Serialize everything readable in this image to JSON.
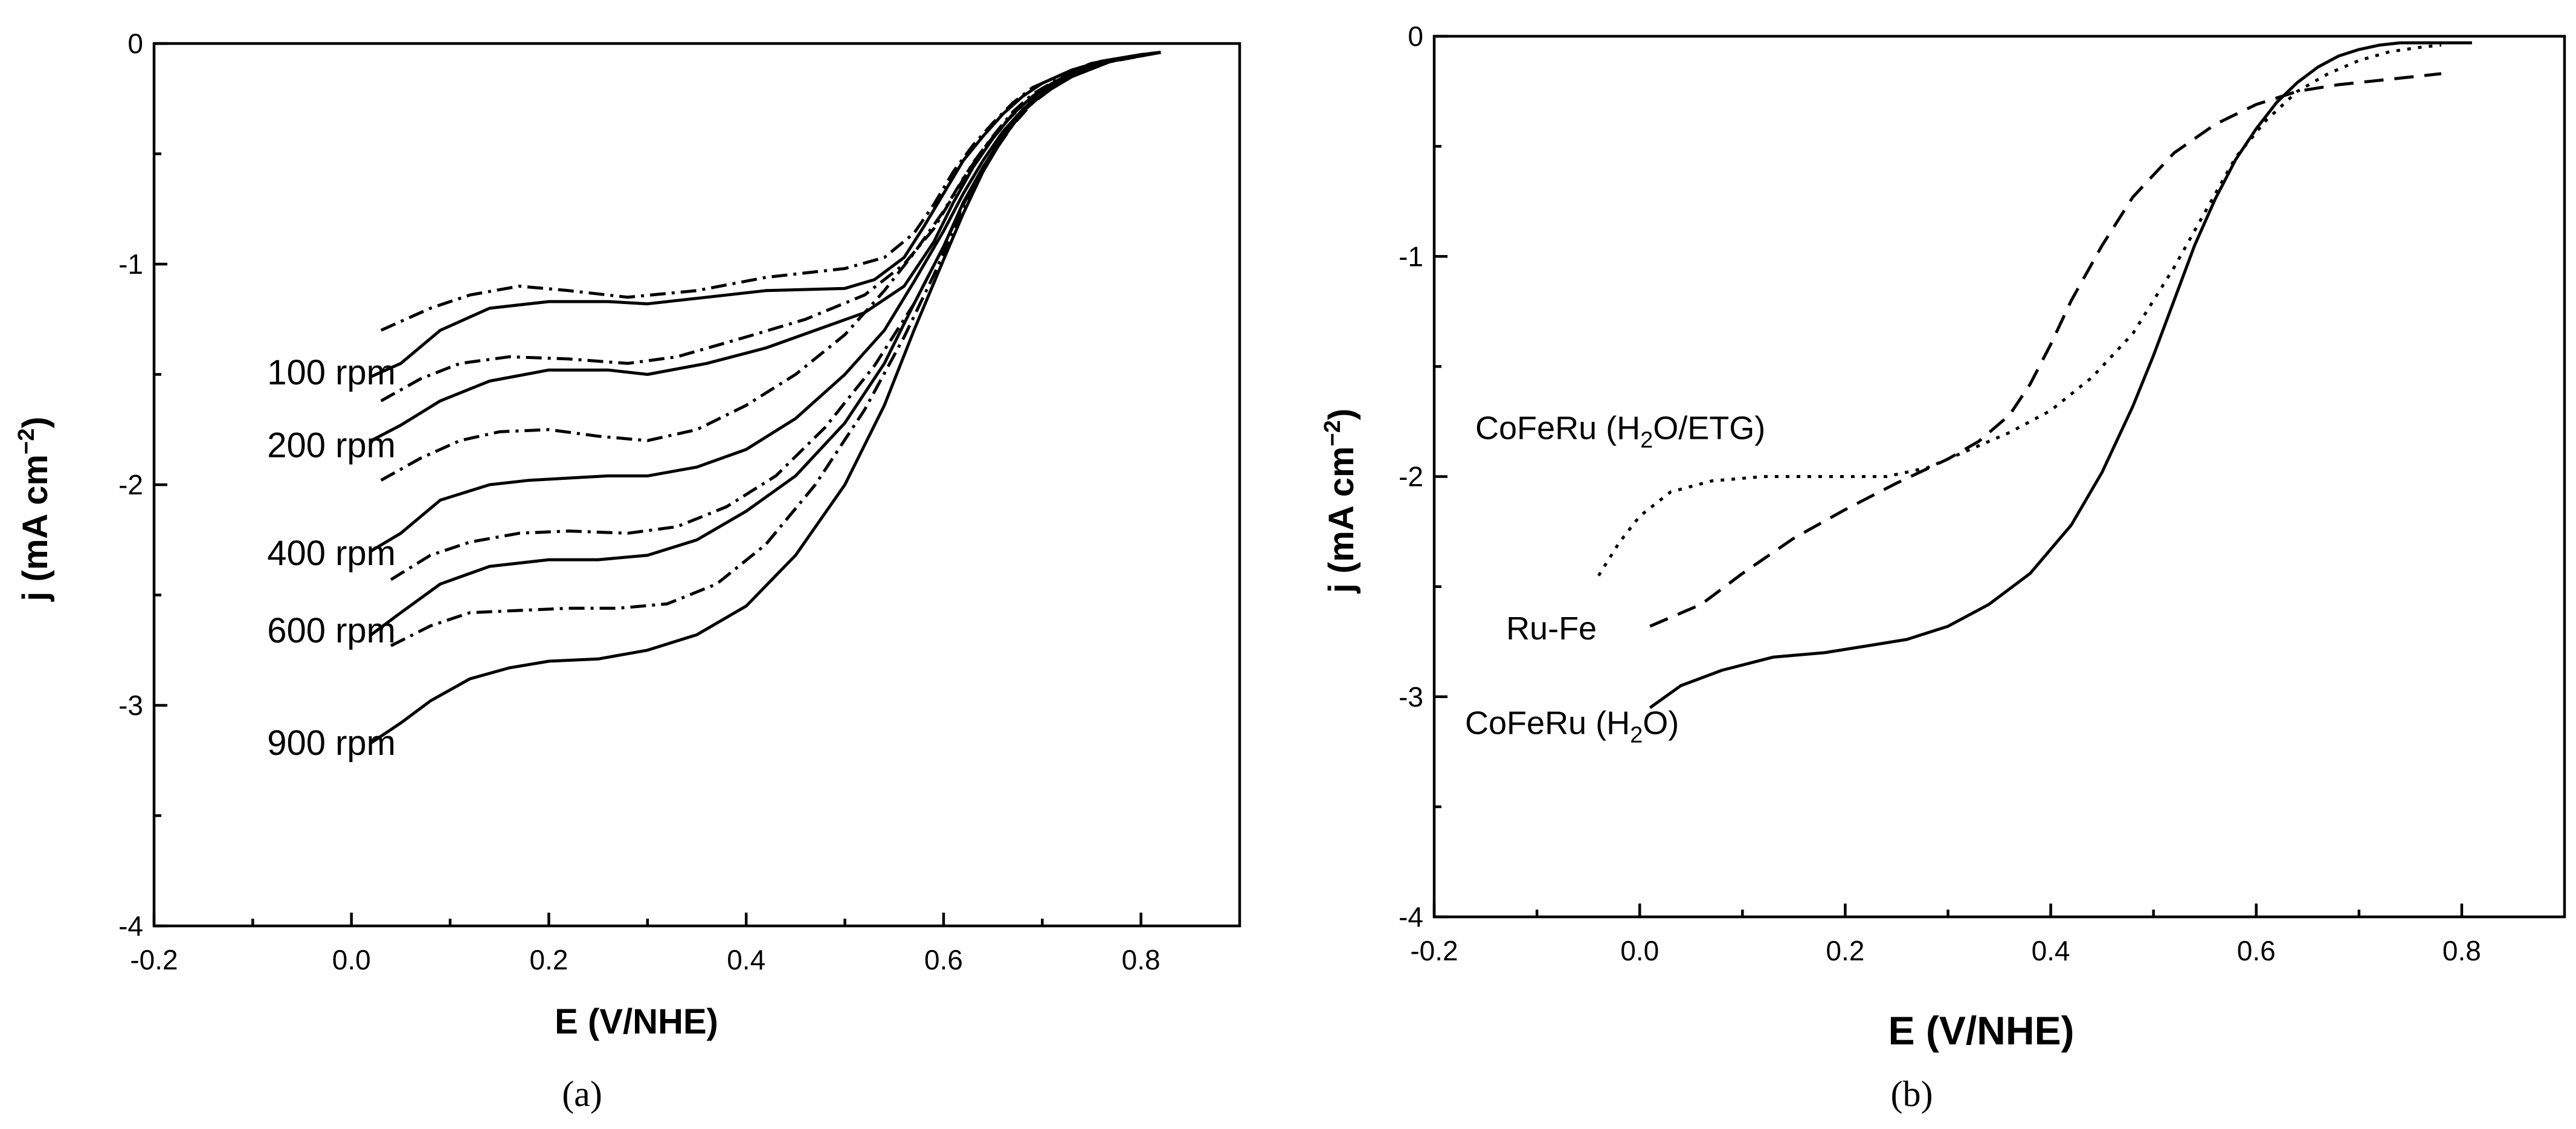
{
  "chart_data": [
    {
      "type": "line",
      "panel_label": "(a)",
      "xlabel": "E (V/NHE)",
      "ylabel": {
        "base": "j (mA cm",
        "sup": "−2",
        "close": ")"
      },
      "xlim": [
        -0.2,
        0.9
      ],
      "ylim": [
        -4,
        0
      ],
      "xticks": [
        -0.2,
        0.0,
        0.2,
        0.4,
        0.6,
        0.8
      ],
      "xtick_labels": [
        "-0.2",
        "0.0",
        "0.2",
        "0.4",
        "0.6",
        "0.8"
      ],
      "yticks": [
        0,
        -1,
        -2,
        -3,
        -4
      ],
      "ytick_labels": [
        "0",
        "-1",
        "-2",
        "-3",
        "-4"
      ],
      "legend": "curve annotations at left",
      "series": [
        {
          "name": "100 rpm",
          "style": "solid",
          "label": "100 rpm",
          "label_y": -1.49,
          "x": [
            0.02,
            0.05,
            0.09,
            0.14,
            0.2,
            0.26,
            0.3,
            0.36,
            0.42,
            0.5,
            0.53,
            0.56,
            0.58,
            0.6,
            0.62,
            0.64,
            0.66,
            0.68,
            0.7,
            0.73,
            0.76,
            0.8,
            0.82
          ],
          "y": [
            -1.51,
            -1.45,
            -1.3,
            -1.2,
            -1.17,
            -1.17,
            -1.18,
            -1.15,
            -1.12,
            -1.11,
            -1.07,
            -0.97,
            -0.83,
            -0.68,
            -0.53,
            -0.42,
            -0.32,
            -0.24,
            -0.18,
            -0.12,
            -0.08,
            -0.05,
            -0.04
          ]
        },
        {
          "name": "100 rpm (dash-dot)",
          "style": "dashdot",
          "x": [
            0.03,
            0.08,
            0.12,
            0.17,
            0.22,
            0.28,
            0.35,
            0.42,
            0.5,
            0.54,
            0.57,
            0.59,
            0.61,
            0.63,
            0.65,
            0.67,
            0.69,
            0.72,
            0.75,
            0.8,
            0.82
          ],
          "y": [
            -1.3,
            -1.2,
            -1.14,
            -1.1,
            -1.12,
            -1.15,
            -1.12,
            -1.06,
            -1.02,
            -0.97,
            -0.86,
            -0.73,
            -0.58,
            -0.46,
            -0.36,
            -0.27,
            -0.2,
            -0.14,
            -0.09,
            -0.05,
            -0.04
          ]
        },
        {
          "name": "200 rpm",
          "style": "solid",
          "label": "200 rpm",
          "label_y": -1.82,
          "x": [
            0.02,
            0.05,
            0.09,
            0.14,
            0.2,
            0.26,
            0.3,
            0.36,
            0.42,
            0.47,
            0.52,
            0.56,
            0.59,
            0.61,
            0.63,
            0.65,
            0.67,
            0.69,
            0.71,
            0.74,
            0.78,
            0.82
          ],
          "y": [
            -1.8,
            -1.73,
            -1.62,
            -1.53,
            -1.48,
            -1.48,
            -1.5,
            -1.45,
            -1.38,
            -1.3,
            -1.22,
            -1.1,
            -0.9,
            -0.72,
            -0.56,
            -0.43,
            -0.32,
            -0.24,
            -0.18,
            -0.11,
            -0.07,
            -0.04
          ]
        },
        {
          "name": "200 rpm (dash-dot)",
          "style": "dashdot",
          "x": [
            0.03,
            0.07,
            0.11,
            0.16,
            0.22,
            0.28,
            0.33,
            0.4,
            0.46,
            0.52,
            0.56,
            0.59,
            0.61,
            0.63,
            0.65,
            0.67,
            0.69,
            0.72,
            0.76,
            0.8,
            0.82
          ],
          "y": [
            -1.62,
            -1.52,
            -1.45,
            -1.42,
            -1.43,
            -1.45,
            -1.42,
            -1.33,
            -1.25,
            -1.14,
            -1.0,
            -0.84,
            -0.69,
            -0.54,
            -0.42,
            -0.31,
            -0.23,
            -0.15,
            -0.09,
            -0.05,
            -0.04
          ]
        },
        {
          "name": "400 rpm",
          "style": "solid",
          "label": "400 rpm",
          "label_y": -2.31,
          "x": [
            0.02,
            0.05,
            0.09,
            0.14,
            0.18,
            0.22,
            0.26,
            0.3,
            0.35,
            0.4,
            0.45,
            0.5,
            0.54,
            0.57,
            0.6,
            0.62,
            0.64,
            0.66,
            0.68,
            0.7,
            0.73,
            0.77,
            0.82
          ],
          "y": [
            -2.3,
            -2.22,
            -2.07,
            -2.0,
            -1.98,
            -1.97,
            -1.96,
            -1.96,
            -1.92,
            -1.84,
            -1.7,
            -1.5,
            -1.3,
            -1.08,
            -0.85,
            -0.68,
            -0.53,
            -0.4,
            -0.3,
            -0.22,
            -0.14,
            -0.08,
            -0.04
          ]
        },
        {
          "name": "400 rpm (dash-dot)",
          "style": "dashdot",
          "x": [
            0.03,
            0.07,
            0.11,
            0.15,
            0.2,
            0.25,
            0.3,
            0.35,
            0.4,
            0.45,
            0.5,
            0.54,
            0.57,
            0.6,
            0.62,
            0.64,
            0.66,
            0.68,
            0.7,
            0.73,
            0.77,
            0.82
          ],
          "y": [
            -1.98,
            -1.88,
            -1.8,
            -1.76,
            -1.75,
            -1.78,
            -1.8,
            -1.75,
            -1.64,
            -1.5,
            -1.32,
            -1.12,
            -0.95,
            -0.76,
            -0.61,
            -0.48,
            -0.37,
            -0.28,
            -0.21,
            -0.13,
            -0.08,
            -0.04
          ]
        },
        {
          "name": "600 rpm",
          "style": "solid",
          "label": "600 rpm",
          "label_y": -2.66,
          "x": [
            0.02,
            0.05,
            0.09,
            0.14,
            0.2,
            0.25,
            0.3,
            0.35,
            0.4,
            0.45,
            0.5,
            0.54,
            0.57,
            0.6,
            0.62,
            0.64,
            0.66,
            0.68,
            0.7,
            0.73,
            0.77,
            0.82
          ],
          "y": [
            -2.68,
            -2.58,
            -2.45,
            -2.37,
            -2.34,
            -2.34,
            -2.32,
            -2.25,
            -2.12,
            -1.96,
            -1.72,
            -1.45,
            -1.18,
            -0.92,
            -0.72,
            -0.56,
            -0.42,
            -0.31,
            -0.23,
            -0.15,
            -0.08,
            -0.04
          ]
        },
        {
          "name": "600 rpm (dash-dot)",
          "style": "dashdot",
          "x": [
            0.04,
            0.08,
            0.12,
            0.17,
            0.22,
            0.28,
            0.33,
            0.38,
            0.43,
            0.48,
            0.53,
            0.57,
            0.6,
            0.62,
            0.64,
            0.66,
            0.68,
            0.7,
            0.73,
            0.77,
            0.82
          ],
          "y": [
            -2.43,
            -2.32,
            -2.26,
            -2.22,
            -2.21,
            -2.22,
            -2.19,
            -2.1,
            -1.96,
            -1.74,
            -1.46,
            -1.18,
            -0.92,
            -0.73,
            -0.56,
            -0.42,
            -0.31,
            -0.22,
            -0.14,
            -0.08,
            -0.04
          ]
        },
        {
          "name": "900 rpm",
          "style": "solid",
          "label": "900 rpm",
          "label_y": -3.17,
          "x": [
            0.02,
            0.05,
            0.08,
            0.12,
            0.16,
            0.2,
            0.25,
            0.3,
            0.35,
            0.4,
            0.45,
            0.5,
            0.54,
            0.57,
            0.6,
            0.62,
            0.64,
            0.66,
            0.68,
            0.7,
            0.73,
            0.77,
            0.82
          ],
          "y": [
            -3.17,
            -3.08,
            -2.98,
            -2.88,
            -2.83,
            -2.8,
            -2.79,
            -2.75,
            -2.68,
            -2.55,
            -2.32,
            -2.0,
            -1.64,
            -1.3,
            -0.98,
            -0.77,
            -0.58,
            -0.43,
            -0.31,
            -0.22,
            -0.14,
            -0.08,
            -0.04
          ]
        },
        {
          "name": "900 rpm (dash-dot)",
          "style": "dashdot",
          "x": [
            0.04,
            0.08,
            0.12,
            0.17,
            0.22,
            0.27,
            0.32,
            0.37,
            0.42,
            0.47,
            0.52,
            0.56,
            0.59,
            0.61,
            0.63,
            0.65,
            0.67,
            0.69,
            0.72,
            0.76,
            0.82
          ],
          "y": [
            -2.73,
            -2.64,
            -2.58,
            -2.57,
            -2.56,
            -2.56,
            -2.54,
            -2.45,
            -2.27,
            -2.0,
            -1.66,
            -1.33,
            -1.05,
            -0.85,
            -0.66,
            -0.5,
            -0.37,
            -0.27,
            -0.17,
            -0.09,
            -0.04
          ]
        }
      ]
    },
    {
      "type": "line",
      "panel_label": "(b)",
      "xlabel": "E (V/NHE)",
      "ylabel": {
        "base": "j (mA cm",
        "sup": "−2",
        "close": ")"
      },
      "xlim": [
        -0.2,
        0.9
      ],
      "ylim": [
        -4,
        0
      ],
      "xticks": [
        -0.2,
        0.0,
        0.2,
        0.4,
        0.6,
        0.8
      ],
      "xtick_labels": [
        "-0.2",
        "0.0",
        "0.2",
        "0.4",
        "0.6",
        "0.8"
      ],
      "yticks": [
        0,
        -1,
        -2,
        -3,
        -4
      ],
      "ytick_labels": [
        "0",
        "-1",
        "-2",
        "-3",
        "-4"
      ],
      "legend": "curve annotations at left",
      "series": [
        {
          "name": "CoFeRu (H2O)",
          "style": "solid",
          "label_parts": {
            "pre": "CoFeRu (H",
            "sub": "2",
            "post": "O)"
          },
          "label_x": -0.17,
          "label_y": -3.17,
          "x": [
            0.01,
            0.04,
            0.08,
            0.13,
            0.18,
            0.22,
            0.26,
            0.3,
            0.34,
            0.38,
            0.42,
            0.45,
            0.48,
            0.5,
            0.52,
            0.54,
            0.56,
            0.58,
            0.6,
            0.62,
            0.64,
            0.66,
            0.68,
            0.7,
            0.72,
            0.74,
            0.78,
            0.81
          ],
          "y": [
            -3.05,
            -2.95,
            -2.88,
            -2.82,
            -2.8,
            -2.77,
            -2.74,
            -2.68,
            -2.58,
            -2.44,
            -2.22,
            -1.98,
            -1.68,
            -1.45,
            -1.2,
            -0.95,
            -0.74,
            -0.56,
            -0.42,
            -0.3,
            -0.21,
            -0.14,
            -0.09,
            -0.06,
            -0.04,
            -0.03,
            -0.03,
            -0.03
          ]
        },
        {
          "name": "Ru-Fe",
          "style": "dashed",
          "label": "Ru-Fe",
          "label_x": -0.13,
          "label_y": -2.74,
          "x": [
            0.01,
            0.06,
            0.1,
            0.15,
            0.2,
            0.25,
            0.3,
            0.33,
            0.36,
            0.38,
            0.4,
            0.42,
            0.45,
            0.48,
            0.52,
            0.56,
            0.6,
            0.64,
            0.68,
            0.72,
            0.76,
            0.78
          ],
          "y": [
            -2.68,
            -2.58,
            -2.44,
            -2.28,
            -2.15,
            -2.03,
            -1.92,
            -1.84,
            -1.72,
            -1.58,
            -1.4,
            -1.2,
            -0.95,
            -0.73,
            -0.53,
            -0.4,
            -0.31,
            -0.25,
            -0.22,
            -0.2,
            -0.18,
            -0.17
          ]
        },
        {
          "name": "CoFeRu (H2O/ETG)",
          "style": "dotted",
          "label_parts": {
            "pre": "CoFeRu (H",
            "sub": "2",
            "post": "O/ETG)"
          },
          "label_x": -0.16,
          "label_y": -1.83,
          "x": [
            -0.04,
            -0.02,
            0.0,
            0.03,
            0.07,
            0.12,
            0.18,
            0.24,
            0.28,
            0.32,
            0.36,
            0.4,
            0.44,
            0.48,
            0.52,
            0.55,
            0.58,
            0.61,
            0.64,
            0.67,
            0.7,
            0.73,
            0.76,
            0.78
          ],
          "y": [
            -2.45,
            -2.3,
            -2.18,
            -2.07,
            -2.02,
            -2.0,
            -2.0,
            -2.0,
            -1.96,
            -1.88,
            -1.8,
            -1.7,
            -1.55,
            -1.35,
            -1.05,
            -0.8,
            -0.55,
            -0.38,
            -0.25,
            -0.17,
            -0.11,
            -0.07,
            -0.05,
            -0.04
          ]
        }
      ]
    }
  ]
}
